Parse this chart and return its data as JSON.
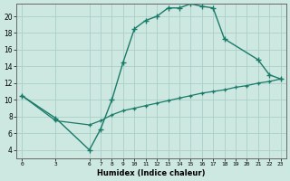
{
  "xlabel": "Humidex (Indice chaleur)",
  "background_color": "#cce8e0",
  "grid_color": "#aad0c8",
  "line_color": "#1a7a6a",
  "xlim": [
    -0.5,
    23.5
  ],
  "ylim": [
    3.0,
    21.5
  ],
  "xticks": [
    0,
    3,
    6,
    7,
    8,
    9,
    10,
    11,
    12,
    13,
    14,
    15,
    16,
    17,
    18,
    19,
    20,
    21,
    22,
    23
  ],
  "yticks": [
    4,
    6,
    8,
    10,
    12,
    14,
    16,
    18,
    20
  ],
  "curve1_x": [
    0,
    3,
    6,
    7,
    8,
    9,
    10,
    11,
    12,
    13,
    14,
    15,
    16,
    17,
    18,
    21,
    22,
    23
  ],
  "curve1_y": [
    10.5,
    7.8,
    4.0,
    6.5,
    10.0,
    14.5,
    18.5,
    19.5,
    20.0,
    21.0,
    21.0,
    21.5,
    21.2,
    21.0,
    17.3,
    14.8,
    13.0,
    12.5
  ],
  "curve2_x": [
    0,
    3,
    6,
    7,
    8,
    9,
    10,
    11,
    12,
    13,
    14,
    15,
    16,
    17,
    18,
    19,
    20,
    21,
    22,
    23
  ],
  "curve2_y": [
    10.5,
    7.5,
    7.0,
    7.5,
    8.2,
    8.7,
    9.0,
    9.3,
    9.6,
    9.9,
    10.2,
    10.5,
    10.8,
    11.0,
    11.2,
    11.5,
    11.7,
    12.0,
    12.2,
    12.5
  ]
}
